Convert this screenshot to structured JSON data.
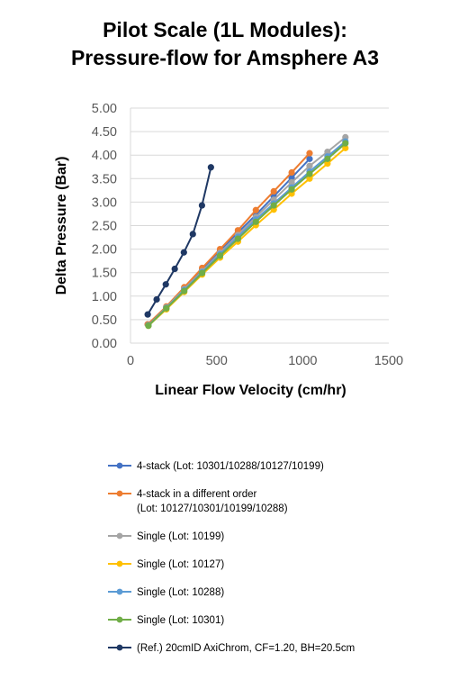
{
  "chart_data": {
    "type": "line",
    "title_line1": "Pilot Scale (1L Modules):",
    "title_line2": "Pressure-flow for Amsphere A3",
    "xlabel": "Linear Flow Velocity (cm/hr)",
    "ylabel": "Delta Pressure (Bar)",
    "xlim": [
      0,
      1500
    ],
    "ylim": [
      0,
      5
    ],
    "x_ticks": [
      "0",
      "500",
      "1000",
      "1500"
    ],
    "y_ticks": [
      "0.00",
      "0.50",
      "1.00",
      "1.50",
      "2.00",
      "2.50",
      "3.00",
      "3.50",
      "4.00",
      "4.50",
      "5.00"
    ],
    "grid": "horizontal",
    "legend_position": "bottom",
    "series": [
      {
        "name": "4-stack (Lot: 10301/10288/10127/10199)",
        "color": "#4472C4",
        "points": [
          [
            100,
            0.4
          ],
          [
            208,
            0.76
          ],
          [
            312,
            1.17
          ],
          [
            416,
            1.57
          ],
          [
            520,
            1.97
          ],
          [
            624,
            2.35
          ],
          [
            728,
            2.73
          ],
          [
            832,
            3.12
          ],
          [
            936,
            3.52
          ],
          [
            1040,
            3.92
          ]
        ]
      },
      {
        "name": "4-stack in a different order\n(Lot: 10127/10301/10199/10288)",
        "color": "#ED7D31",
        "points": [
          [
            100,
            0.4
          ],
          [
            208,
            0.78
          ],
          [
            312,
            1.19
          ],
          [
            416,
            1.6
          ],
          [
            520,
            2.0
          ],
          [
            624,
            2.4
          ],
          [
            728,
            2.83
          ],
          [
            832,
            3.23
          ],
          [
            936,
            3.63
          ],
          [
            1040,
            4.04
          ]
        ]
      },
      {
        "name": "Single (Lot: 10199)",
        "color": "#A5A5A5",
        "points": [
          [
            104,
            0.38
          ],
          [
            208,
            0.76
          ],
          [
            312,
            1.15
          ],
          [
            416,
            1.53
          ],
          [
            520,
            1.92
          ],
          [
            624,
            2.3
          ],
          [
            728,
            2.68
          ],
          [
            832,
            3.05
          ],
          [
            936,
            3.42
          ],
          [
            1040,
            3.77
          ],
          [
            1144,
            4.07
          ],
          [
            1248,
            4.38
          ]
        ]
      },
      {
        "name": "Single (Lot: 10127)",
        "color": "#FFC000",
        "points": [
          [
            104,
            0.37
          ],
          [
            208,
            0.72
          ],
          [
            312,
            1.09
          ],
          [
            416,
            1.46
          ],
          [
            520,
            1.82
          ],
          [
            624,
            2.16
          ],
          [
            728,
            2.51
          ],
          [
            832,
            2.84
          ],
          [
            936,
            3.18
          ],
          [
            1040,
            3.5
          ],
          [
            1144,
            3.82
          ],
          [
            1248,
            4.15
          ]
        ]
      },
      {
        "name": "Single (Lot: 10288)",
        "color": "#5B9BD5",
        "points": [
          [
            104,
            0.38
          ],
          [
            208,
            0.75
          ],
          [
            312,
            1.13
          ],
          [
            416,
            1.51
          ],
          [
            520,
            1.89
          ],
          [
            624,
            2.26
          ],
          [
            728,
            2.63
          ],
          [
            832,
            2.97
          ],
          [
            936,
            3.31
          ],
          [
            1040,
            3.65
          ],
          [
            1144,
            3.97
          ],
          [
            1248,
            4.29
          ]
        ]
      },
      {
        "name": "Single (Lot: 10301)",
        "color": "#70AD47",
        "points": [
          [
            104,
            0.37
          ],
          [
            208,
            0.74
          ],
          [
            312,
            1.11
          ],
          [
            416,
            1.49
          ],
          [
            520,
            1.86
          ],
          [
            624,
            2.22
          ],
          [
            728,
            2.58
          ],
          [
            832,
            2.93
          ],
          [
            936,
            3.27
          ],
          [
            1040,
            3.6
          ],
          [
            1144,
            3.92
          ],
          [
            1248,
            4.25
          ]
        ]
      },
      {
        "name": "(Ref.) 20cmID AxiChrom, CF=1.20, BH=20.5cm",
        "color": "#1F3864",
        "points": [
          [
            100,
            0.61
          ],
          [
            152,
            0.93
          ],
          [
            205,
            1.25
          ],
          [
            257,
            1.58
          ],
          [
            310,
            1.93
          ],
          [
            362,
            2.32
          ],
          [
            415,
            2.93
          ],
          [
            467,
            3.74
          ]
        ]
      }
    ]
  }
}
